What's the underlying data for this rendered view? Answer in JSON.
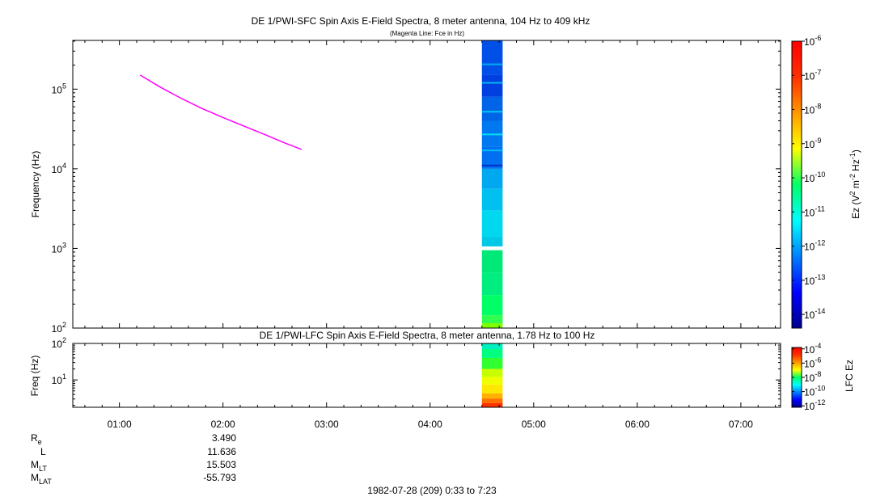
{
  "chart_data": [
    {
      "type": "heatmap",
      "name": "sfc",
      "title": "DE 1/PWI-SFC  Spin Axis E-Field Spectra, 8 meter antenna, 104 Hz to 409 kHz",
      "subtitle": "(Magenta Line: Fce in Hz)",
      "ylabel": "Frequency (Hz)",
      "yscale": "log",
      "ylim": [
        100,
        409000
      ],
      "y_ticks": [
        {
          "value": 100,
          "base": "10",
          "exp": "2"
        },
        {
          "value": 1000,
          "base": "10",
          "exp": "3"
        },
        {
          "value": 10000,
          "base": "10",
          "exp": "4"
        },
        {
          "value": 100000,
          "base": "10",
          "exp": "5"
        }
      ],
      "xlim_hours": [
        0.55,
        7.38333
      ],
      "spectrum_data_hours": [
        4.5,
        4.7
      ],
      "data_gap_hz": [
        950,
        1060
      ],
      "colorbar": {
        "label": "Ez (V2 m-2 Hz-1)",
        "label_base": "Ez (V",
        "label_exp1": "2",
        "label_mid": " m",
        "label_exp2": "-2",
        "label_mid2": " Hz",
        "label_exp3": "-1",
        "label_end": ")",
        "scale": "log",
        "range_exp": [
          -14.4,
          -6
        ],
        "ticks": [
          {
            "exp_value": -6,
            "base": "10",
            "exp": "-6"
          },
          {
            "exp_value": -7,
            "base": "10",
            "exp": "-7"
          },
          {
            "exp_value": -8,
            "base": "10",
            "exp": "-8"
          },
          {
            "exp_value": -9,
            "base": "10",
            "exp": "-9"
          },
          {
            "exp_value": -10,
            "base": "10",
            "exp": "-10"
          },
          {
            "exp_value": -11,
            "base": "10",
            "exp": "-11"
          },
          {
            "exp_value": -12,
            "base": "10",
            "exp": "-12"
          },
          {
            "exp_value": -13,
            "base": "10",
            "exp": "-13"
          },
          {
            "exp_value": -14,
            "base": "10",
            "exp": "-14"
          }
        ]
      },
      "fce_line": {
        "color": "#ff00ff",
        "points": [
          {
            "t": 1.2,
            "f": 150000
          },
          {
            "t": 1.4,
            "f": 105000
          },
          {
            "t": 1.6,
            "f": 76000
          },
          {
            "t": 1.8,
            "f": 57000
          },
          {
            "t": 2.0,
            "f": 44000
          },
          {
            "t": 2.2,
            "f": 34500
          },
          {
            "t": 2.4,
            "f": 27000
          },
          {
            "t": 2.6,
            "f": 21000
          },
          {
            "t": 2.76,
            "f": 17500
          }
        ]
      },
      "spectrum_bands": [
        {
          "f1": 100,
          "f2": 115,
          "color": "#7fff00"
        },
        {
          "f1": 115,
          "f2": 145,
          "color": "#30ff50"
        },
        {
          "f1": 145,
          "f2": 260,
          "color": "#00ff66"
        },
        {
          "f1": 260,
          "f2": 500,
          "color": "#00ee80"
        },
        {
          "f1": 500,
          "f2": 950,
          "color": "#00e878"
        },
        {
          "f1": 1060,
          "f2": 1400,
          "color": "#00c8e6"
        },
        {
          "f1": 1400,
          "f2": 3000,
          "color": "#00d8f0"
        },
        {
          "f1": 3000,
          "f2": 5600,
          "color": "#00c0f0"
        },
        {
          "f1": 5600,
          "f2": 10000,
          "color": "#00a8f0"
        },
        {
          "f1": 10000,
          "f2": 19000,
          "color": "#0070f0"
        },
        {
          "f1": 19000,
          "f2": 40000,
          "color": "#0078f0"
        },
        {
          "f1": 40000,
          "f2": 80000,
          "color": "#0064e6"
        },
        {
          "f1": 80000,
          "f2": 150000,
          "color": "#0040e0"
        },
        {
          "f1": 150000,
          "f2": 409000,
          "color": "#0050e8"
        }
      ],
      "spectrum_streaks": [
        {
          "f": 205000,
          "color": "#00aaf0"
        },
        {
          "f": 120000,
          "color": "#00b8f0"
        },
        {
          "f": 52000,
          "color": "#00c8f0"
        },
        {
          "f": 27000,
          "color": "#00e0f0"
        },
        {
          "f": 17000,
          "color": "#00c0f0"
        },
        {
          "f": 11000,
          "color": "#0030c8"
        }
      ]
    },
    {
      "type": "heatmap",
      "name": "lfc",
      "title": "DE 1/PWI-LFC  Spin Axis E-Field Spectra, 8 meter antenna, 1.78 Hz to 100 Hz",
      "ylabel": "Freq (Hz)",
      "yscale": "log",
      "ylim": [
        1.78,
        100
      ],
      "y_ticks": [
        {
          "value": 10,
          "base": "10",
          "exp": "1"
        },
        {
          "value": 100,
          "base": "10",
          "exp": "2"
        }
      ],
      "xlim_hours": [
        0.55,
        7.38333
      ],
      "spectrum_data_hours": [
        4.5,
        4.7
      ],
      "colorbar": {
        "label": "LFC Ez",
        "scale": "log",
        "range_exp": [
          -12.2,
          -3.8
        ],
        "ticks": [
          {
            "exp_value": -4,
            "base": "10",
            "exp": "-4"
          },
          {
            "exp_value": -6,
            "base": "10",
            "exp": "-6"
          },
          {
            "exp_value": -8,
            "base": "10",
            "exp": "-8"
          },
          {
            "exp_value": -10,
            "base": "10",
            "exp": "-10"
          },
          {
            "exp_value": -12,
            "base": "10",
            "exp": "-12"
          }
        ]
      },
      "spectrum_bands": [
        {
          "f1": 1.78,
          "f2": 2.3,
          "color": "#ff3000"
        },
        {
          "f1": 2.3,
          "f2": 3.1,
          "color": "#ff7000"
        },
        {
          "f1": 3.1,
          "f2": 4.3,
          "color": "#ffb000"
        },
        {
          "f1": 4.3,
          "f2": 7.5,
          "color": "#ffe800"
        },
        {
          "f1": 7.5,
          "f2": 12,
          "color": "#f0ff00"
        },
        {
          "f1": 12,
          "f2": 20,
          "color": "#c8ff00"
        },
        {
          "f1": 20,
          "f2": 40,
          "color": "#30ff30"
        },
        {
          "f1": 40,
          "f2": 70,
          "color": "#00ff80"
        },
        {
          "f1": 70,
          "f2": 100,
          "color": "#00f0c0"
        }
      ]
    }
  ],
  "time_axis": {
    "ticks": [
      {
        "hour": 1,
        "label": "01:00"
      },
      {
        "hour": 2,
        "label": "02:00"
      },
      {
        "hour": 3,
        "label": "03:00"
      },
      {
        "hour": 4,
        "label": "04:00"
      },
      {
        "hour": 5,
        "label": "05:00"
      },
      {
        "hour": 6,
        "label": "06:00"
      },
      {
        "hour": 7,
        "label": "07:00"
      }
    ],
    "minor_step_minutes": 10
  },
  "ephemeris": [
    {
      "label": "R",
      "sub": "e",
      "value": "3.490"
    },
    {
      "label": "L",
      "sub": "",
      "value": "11.636"
    },
    {
      "label": "M",
      "sub": "LT",
      "value": "15.503"
    },
    {
      "label": "M",
      "sub": "LAT",
      "value": "-55.793"
    }
  ],
  "footer": "1982-07-28 (209) 0:33 to 7:23"
}
